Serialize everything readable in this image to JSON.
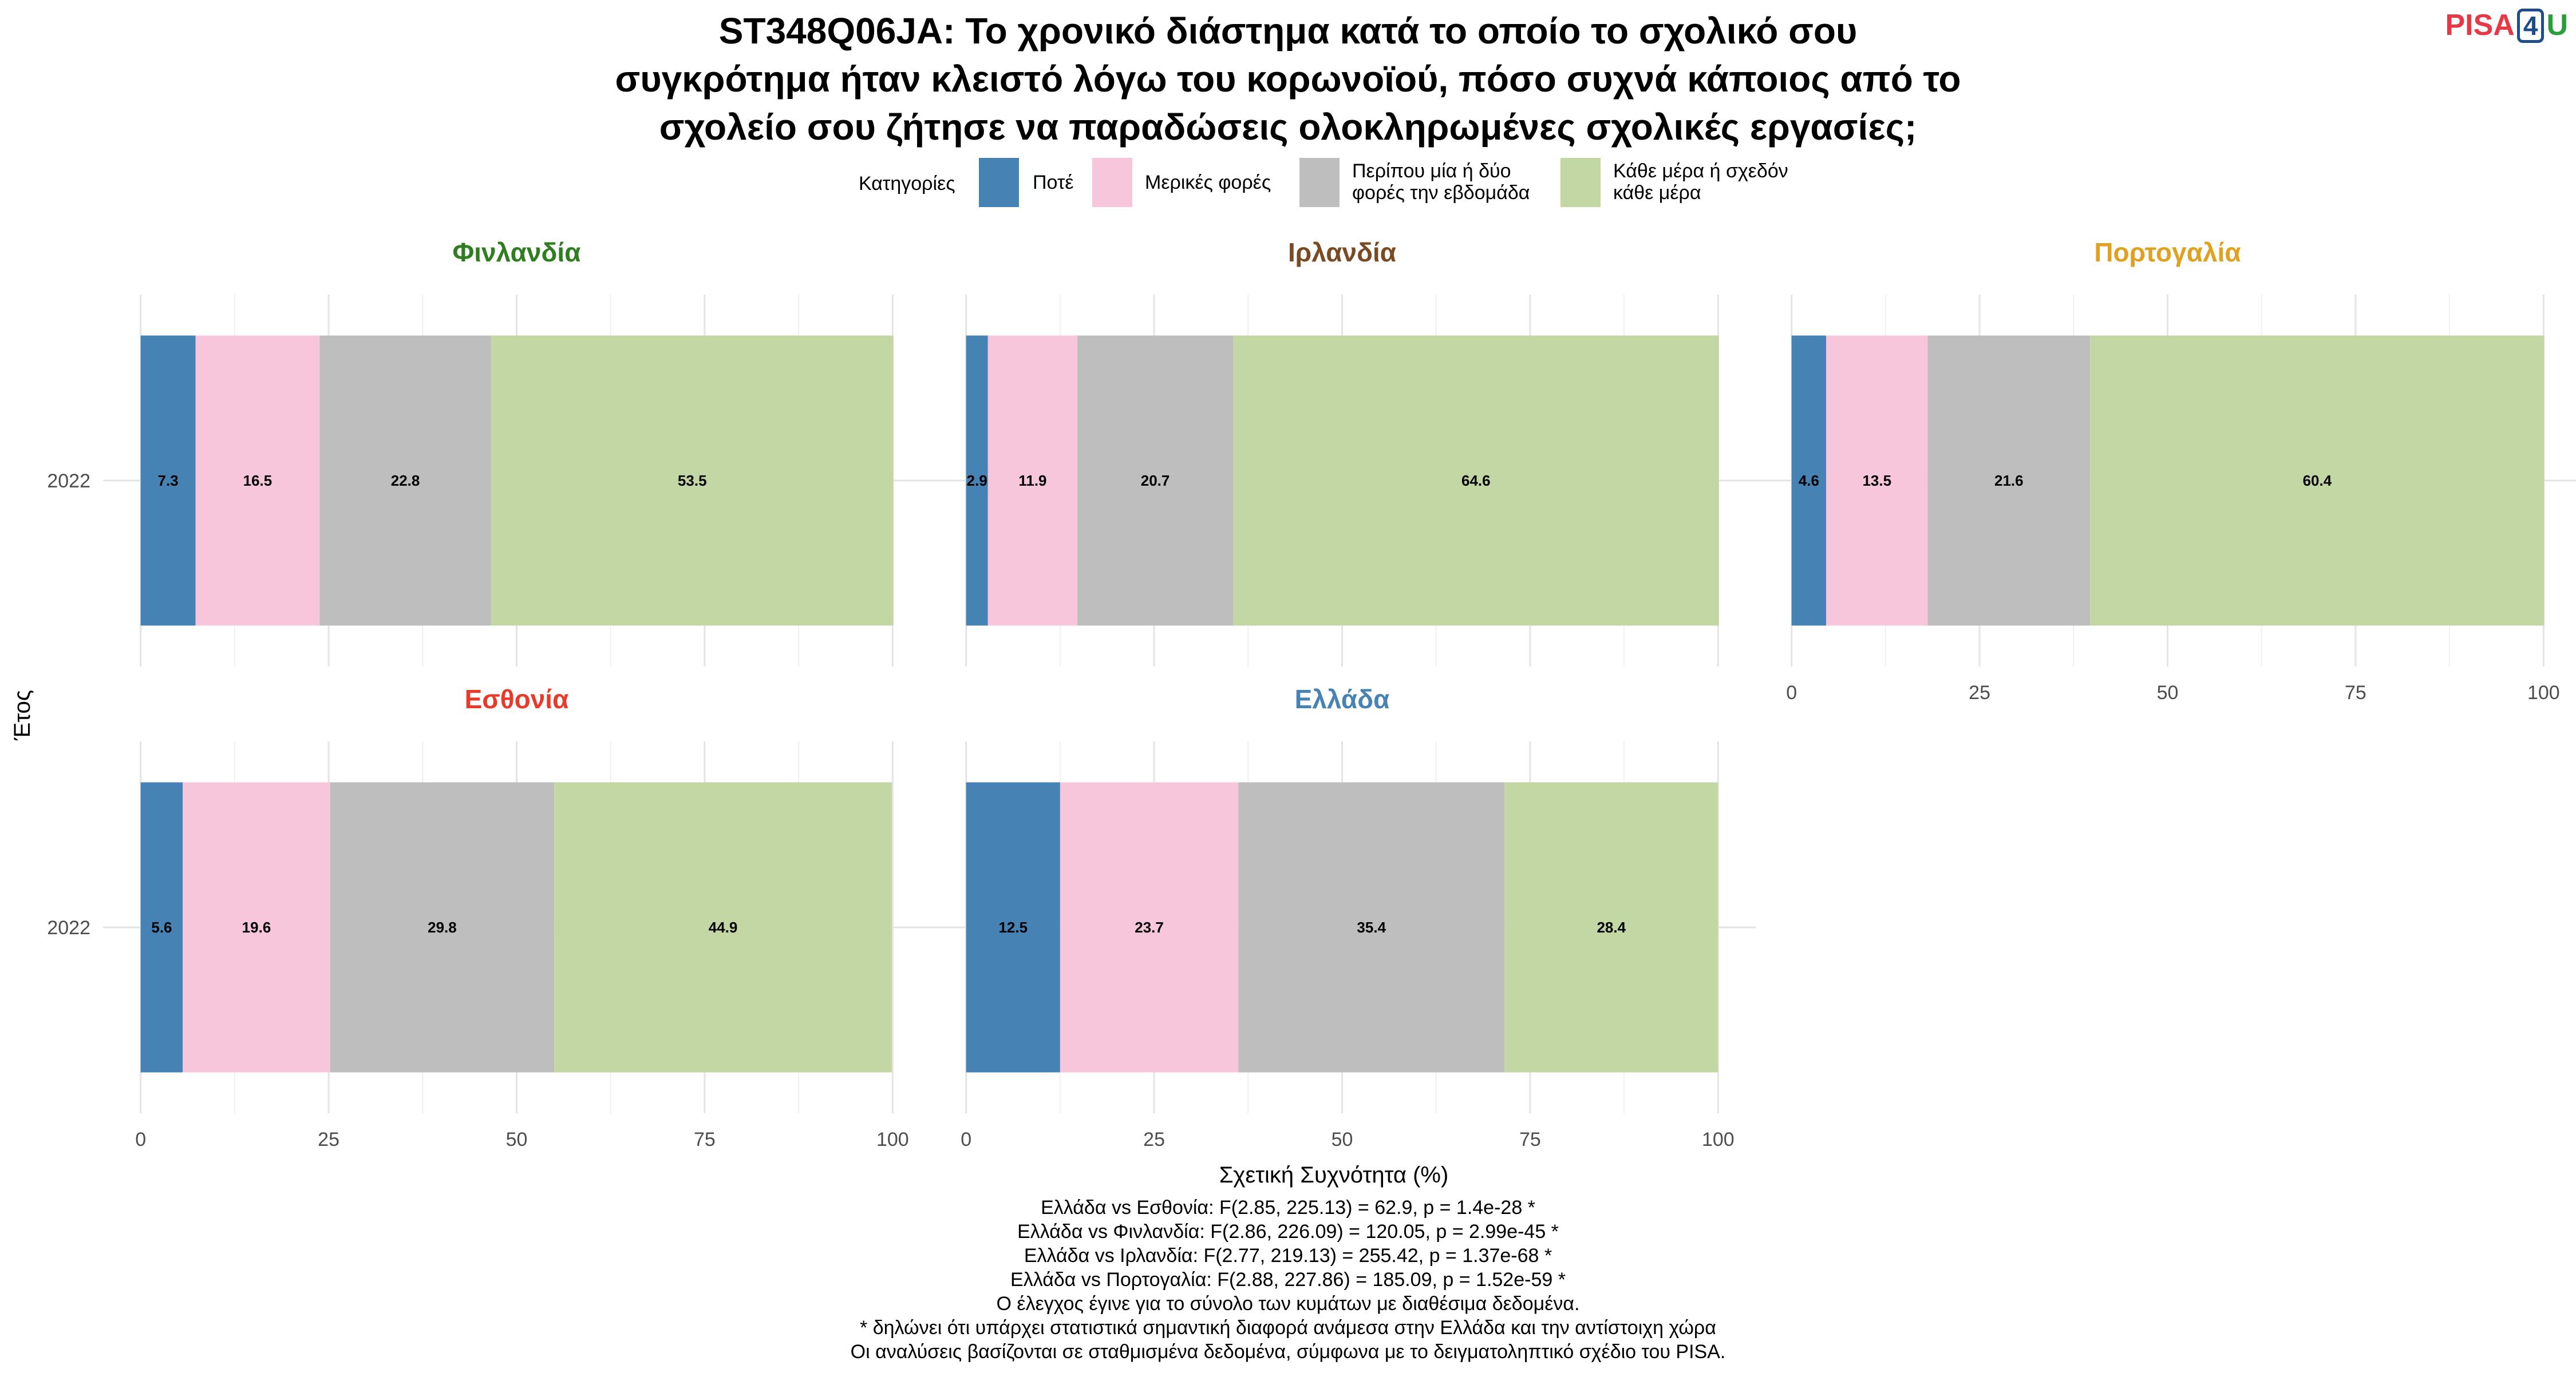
{
  "title_lines": [
    "ST348Q06JA: Το χρονικό διάστημα κατά το οποίο το σχολικό σου",
    "συγκρότημα ήταν κλειστό λόγω του κορωνοϊού, πόσο συχνά κάποιος από το",
    "σχολείο σου ζήτησε να παραδώσεις ολοκληρωμένες σχολικές εργασίες;"
  ],
  "logo": {
    "left": "PISA",
    "box": "4",
    "right": "U"
  },
  "legend": {
    "title": "Κατηγορίες",
    "items": [
      {
        "lines": [
          "Ποτέ"
        ],
        "color": "#4682b4"
      },
      {
        "lines": [
          "Μερικές φορές"
        ],
        "color": "#f7c6db"
      },
      {
        "lines": [
          "Περίπου μία ή δύο",
          "φορές την εβδομάδα"
        ],
        "color": "#bebebe"
      },
      {
        "lines": [
          "Κάθε μέρα ή σχεδόν",
          "κάθε μέρα"
        ],
        "color": "#c3d7a4"
      }
    ]
  },
  "chart_data": {
    "type": "bar",
    "orientation": "horizontal-stacked",
    "xlabel": "Σχετική Συχνότητα (%)",
    "ylabel": "Έτος",
    "xlim": [
      0,
      100
    ],
    "xticks": [
      "0",
      "25",
      "50",
      "75",
      "100"
    ],
    "categories": [
      "Ποτέ",
      "Μερικές φορές",
      "Περίπου μία ή δύο φορές την εβδομάδα",
      "Κάθε μέρα ή σχεδόν κάθε μέρα"
    ],
    "colors": [
      "#4682b4",
      "#f7c6db",
      "#bebebe",
      "#c3d7a4"
    ],
    "panels": [
      {
        "name": "Φινλανδία",
        "color": "#2e7d1f",
        "year": "2022",
        "values": [
          7.3,
          16.5,
          22.8,
          53.5
        ],
        "labels": [
          "7.3",
          "16.5",
          "22.8",
          "53.5"
        ]
      },
      {
        "name": "Ιρλανδία",
        "color": "#7a4a22",
        "year": "2022",
        "values": [
          2.9,
          11.9,
          20.7,
          64.6
        ],
        "labels": [
          "2.9",
          "11.9",
          "20.7",
          "64.6"
        ]
      },
      {
        "name": "Πορτογαλία",
        "color": "#e0a020",
        "year": "2022",
        "values": [
          4.6,
          13.5,
          21.6,
          60.4
        ],
        "labels": [
          "4.6",
          "13.5",
          "21.6",
          "60.4"
        ]
      },
      {
        "name": "Εσθονία",
        "color": "#e8392b",
        "year": "2022",
        "values": [
          5.6,
          19.6,
          29.8,
          44.9
        ],
        "labels": [
          "5.6",
          "19.6",
          "29.8",
          "44.9"
        ]
      },
      {
        "name": "Ελλάδα",
        "color": "#4682b4",
        "year": "2022",
        "values": [
          12.5,
          23.7,
          35.4,
          28.4
        ],
        "labels": [
          "12.5",
          "23.7",
          "35.4",
          "28.4"
        ]
      }
    ]
  },
  "caption_lines": [
    "Ελλάδα vs Εσθονία: F(2.85, 225.13) = 62.9, p = 1.4e-28 *",
    "Ελλάδα vs Φινλανδία: F(2.86, 226.09) = 120.05, p = 2.99e-45 *",
    "Ελλάδα vs Ιρλανδία: F(2.77, 219.13) = 255.42, p = 1.37e-68 *",
    "Ελλάδα vs Πορτογαλία: F(2.88, 227.86) = 185.09, p = 1.52e-59 *",
    "Ο έλεγχος έγινε για το σύνολο των κυμάτων με διαθέσιμα δεδομένα.",
    "* δηλώνει ότι υπάρχει στατιστικά σημαντική διαφορά ανάμεσα στην Ελλάδα και την αντίστοιχη χώρα",
    "Οι αναλύσεις βασίζονται σε σταθμισμένα δεδομένα, σύμφωνα με το δειγματοληπτικό σχέδιο του PISA."
  ]
}
